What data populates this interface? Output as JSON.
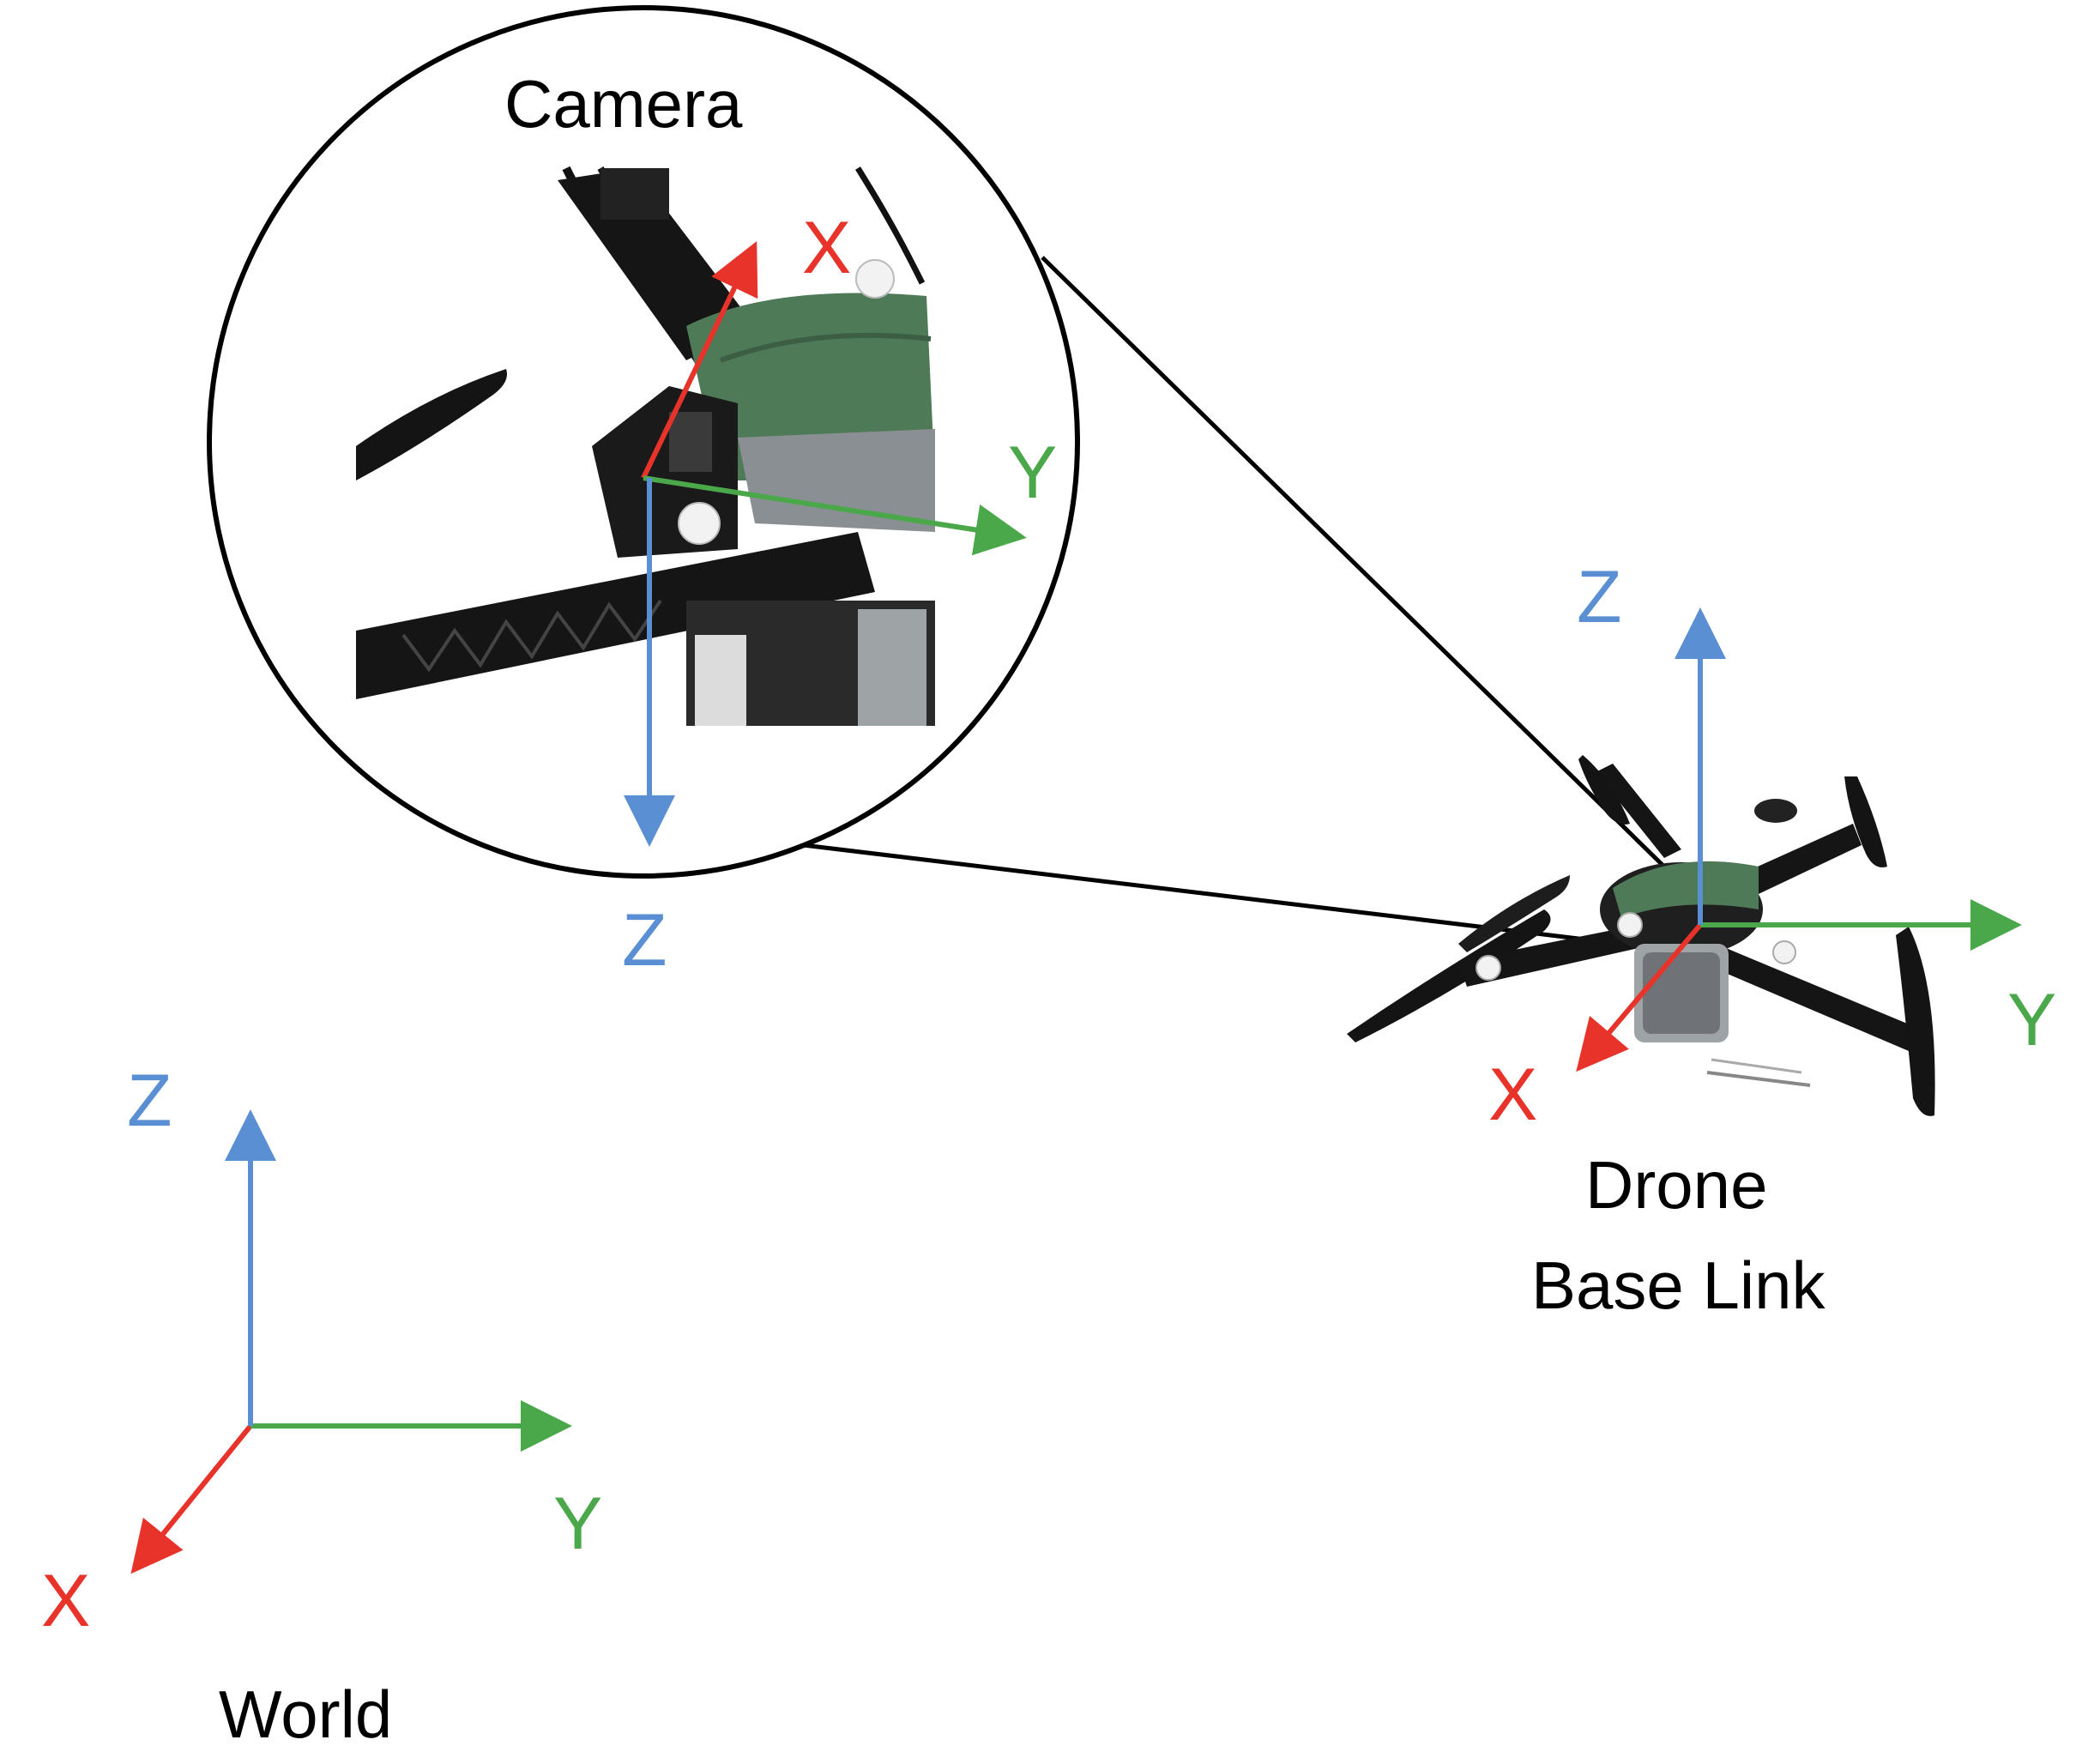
{
  "colors": {
    "x_axis": "#e8332a",
    "y_axis": "#4aa84a",
    "z_axis": "#5b8fd4",
    "outline": "#000000",
    "drone_body": "#1c1c1c",
    "drone_shell": "#4f7a58"
  },
  "frames": {
    "camera": {
      "title": "Camera",
      "x_label": "X",
      "y_label": "Y",
      "z_label": "Z"
    },
    "drone": {
      "title_line1": "Drone",
      "title_line2": "Base Link",
      "x_label": "X",
      "y_label": "Y",
      "z_label": "Z"
    },
    "world": {
      "title": "World",
      "x_label": "X",
      "y_label": "Y",
      "z_label": "Z"
    }
  },
  "icons": {
    "camera_photo": "drone-closeup-photo-icon",
    "drone_photo": "drone-photo-icon"
  }
}
